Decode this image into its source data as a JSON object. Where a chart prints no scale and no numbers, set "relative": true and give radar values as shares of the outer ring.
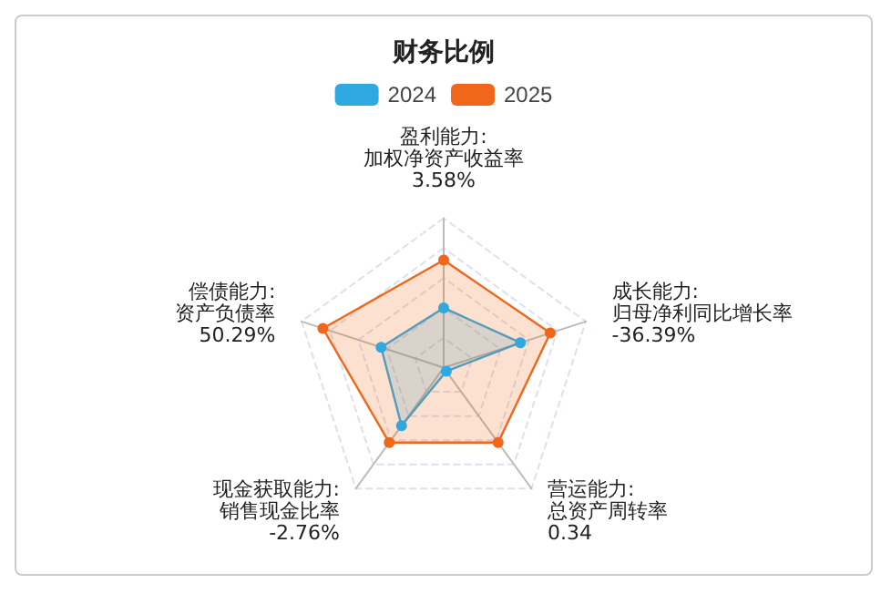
{
  "chart_data": {
    "type": "radar",
    "title": "财务比例",
    "relative": true,
    "legend": "top",
    "marker": "circle",
    "line_style": "solid",
    "grid": true,
    "categories": [
      "盈利能力:\n加权净资产收益率\n3.58%",
      "成长能力:\n归母净利同比增长率\n-36.39%",
      "营运能力:\n总资产周转率\n0.34",
      "现金获取能力:\n销售现金比率\n-2.76%",
      "偿债能力:\n资产负债率\n50.29%"
    ],
    "series": [
      {
        "name": "2024",
        "color": "#2fa9e0",
        "values": [
          0.4,
          0.54,
          0.03,
          0.48,
          0.44
        ]
      },
      {
        "name": "2025",
        "color": "#f0671b",
        "values": [
          0.72,
          0.75,
          0.62,
          0.62,
          0.85
        ]
      }
    ]
  }
}
